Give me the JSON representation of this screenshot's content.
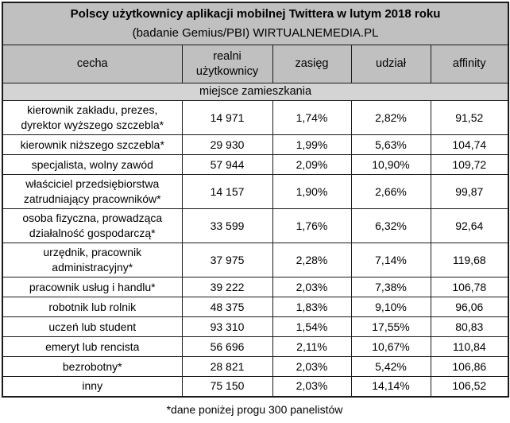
{
  "chart_data": {
    "type": "table",
    "title": "Polscy użytkownicy aplikacji mobilnej Twittera w lutym 2018 roku",
    "subtitle": "(badanie Gemius/PBI) WIRTUALNEMEDIA.PL",
    "columns": [
      "cecha",
      "realni użytkownicy",
      "zasięg",
      "udział",
      "affinity"
    ],
    "section_header": "miejsce zamieszkania",
    "rows": [
      [
        "kierownik zakładu, prezes, dyrektor wyższego szczebla*",
        "14 971",
        "1,74%",
        "2,82%",
        "91,52"
      ],
      [
        "kierownik niższego szczebla*",
        "29 930",
        "1,99%",
        "5,63%",
        "104,74"
      ],
      [
        "specjalista, wolny zawód",
        "57 944",
        "2,09%",
        "10,90%",
        "109,72"
      ],
      [
        "właściciel przedsiębiorstwa zatrudniający pracowników*",
        "14 157",
        "1,90%",
        "2,66%",
        "99,87"
      ],
      [
        "osoba fizyczna, prowadząca działalność gospodarczą*",
        "33 599",
        "1,76%",
        "6,32%",
        "92,64"
      ],
      [
        "urzędnik, pracownik administracyjny*",
        "37 975",
        "2,28%",
        "7,14%",
        "119,68"
      ],
      [
        "pracownik usług i handlu*",
        "39 222",
        "2,03%",
        "7,38%",
        "106,78"
      ],
      [
        "robotnik lub rolnik",
        "48 375",
        "1,83%",
        "9,10%",
        "96,06"
      ],
      [
        "uczeń lub student",
        "93 310",
        "1,54%",
        "17,55%",
        "80,83"
      ],
      [
        "emeryt lub rencista",
        "56 696",
        "2,11%",
        "10,67%",
        "110,84"
      ],
      [
        "bezrobotny*",
        "28 821",
        "2,03%",
        "5,42%",
        "106,86"
      ],
      [
        "inny",
        "75 150",
        "2,03%",
        "14,14%",
        "106,52"
      ]
    ],
    "footnote": "*dane poniżej progu 300 panelistów"
  },
  "colors": {
    "header_bg": "#c0c0c0",
    "section_bg": "#d4d4d4",
    "border": "#1a1a1a",
    "text": "#000000"
  }
}
